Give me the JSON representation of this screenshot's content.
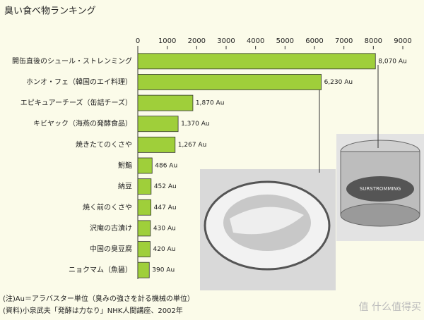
{
  "chart_data": {
    "type": "hbar",
    "title": "臭い食べ物ランキング",
    "categories": [
      "開缶直後のシュール・ストレンミング",
      "ホンオ・フェ（韓国のエイ料理）",
      "エピキュアーチーズ（缶詰チーズ）",
      "キビヤック（海燕の発酵食品）",
      "焼きたてのくさや",
      "鮒鮨",
      "納豆",
      "焼く前のくさや",
      "沢庵の古漬け",
      "中国の臭豆腐",
      "ニョクマム（魚醤）"
    ],
    "values": [
      8070,
      6230,
      1870,
      1370,
      1267,
      486,
      452,
      447,
      430,
      420,
      390
    ],
    "value_labels": [
      "8,070 Au",
      "6,230 Au",
      "1,870 Au",
      "1,370 Au",
      "1,267 Au",
      "486 Au",
      "452 Au",
      "447 Au",
      "430 Au",
      "420 Au",
      "390 Au"
    ],
    "color": "#9fcf3a",
    "xlim": [
      0,
      9000
    ],
    "xticks": [
      0,
      1000,
      2000,
      3000,
      4000,
      5000,
      6000,
      7000,
      8000,
      9000
    ],
    "notes": [
      "(注)Au＝アラバスター単位（臭みの強さを計る機械の単位）",
      "(資料)小泉武夫「発酵は力なり」NHK人間講座、2002年"
    ],
    "photo_label": "SURSTROMMING",
    "watermark": "值 什么值得买"
  }
}
